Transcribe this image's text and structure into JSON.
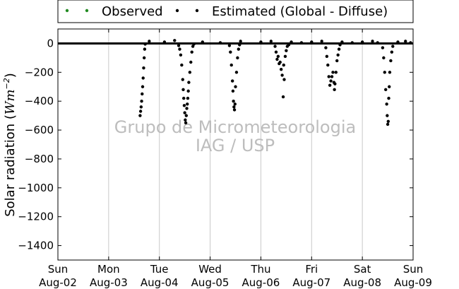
{
  "chart_data": {
    "type": "scatter",
    "ylabel": "Solar radiation",
    "ylabel_unit": "Wm",
    "ylabel_unit_exp": "−2",
    "ylim": [
      -1500,
      100
    ],
    "yticks": [
      0,
      -200,
      -400,
      -600,
      -800,
      -1000,
      -1200,
      -1400
    ],
    "ytick_labels": [
      "0",
      "−200",
      "−400",
      "−600",
      "−800",
      "−1000",
      "−1200",
      "−1400"
    ],
    "xlim": [
      0,
      7
    ],
    "x_unit": "days since Sun Aug-02 00:00",
    "xticks": [
      {
        "day": "Sun",
        "date": "Aug-02"
      },
      {
        "day": "Mon",
        "date": "Aug-03"
      },
      {
        "day": "Tue",
        "date": "Aug-04"
      },
      {
        "day": "Wed",
        "date": "Aug-05"
      },
      {
        "day": "Thu",
        "date": "Aug-06"
      },
      {
        "day": "Fri",
        "date": "Aug-07"
      },
      {
        "day": "Sat",
        "date": "Aug-08"
      },
      {
        "day": "Sun",
        "date": "Aug-09"
      }
    ],
    "grid": "vertical",
    "legend_position": "top",
    "watermark": [
      "Grupo de Micrometeorologia",
      "IAG / USP"
    ],
    "series": [
      {
        "name": "Observed",
        "color": "#228b22",
        "points": []
      },
      {
        "name": "Estimated (Global - Diffuse)",
        "color": "#000000",
        "baseline": 0,
        "points": [
          [
            1.62,
            -500
          ],
          [
            1.63,
            -470
          ],
          [
            1.64,
            -440
          ],
          [
            1.65,
            -400
          ],
          [
            1.66,
            -350
          ],
          [
            1.67,
            -300
          ],
          [
            1.68,
            -240
          ],
          [
            1.69,
            -170
          ],
          [
            1.7,
            -100
          ],
          [
            1.71,
            -40
          ],
          [
            1.72,
            -5
          ],
          [
            2.38,
            -15
          ],
          [
            2.4,
            -40
          ],
          [
            2.42,
            -80
          ],
          [
            2.44,
            -150
          ],
          [
            2.46,
            -250
          ],
          [
            2.47,
            -320
          ],
          [
            2.48,
            -380
          ],
          [
            2.49,
            -430
          ],
          [
            2.5,
            -480
          ],
          [
            2.51,
            -530
          ],
          [
            2.52,
            -550
          ],
          [
            2.53,
            -500
          ],
          [
            2.54,
            -450
          ],
          [
            2.55,
            -420
          ],
          [
            2.56,
            -380
          ],
          [
            2.57,
            -330
          ],
          [
            2.58,
            -270
          ],
          [
            2.6,
            -200
          ],
          [
            2.62,
            -130
          ],
          [
            2.64,
            -60
          ],
          [
            2.66,
            -20
          ],
          [
            2.68,
            -5
          ],
          [
            3.38,
            -15
          ],
          [
            3.4,
            -60
          ],
          [
            3.42,
            -150
          ],
          [
            3.44,
            -260
          ],
          [
            3.45,
            -330
          ],
          [
            3.46,
            -400
          ],
          [
            3.47,
            -440
          ],
          [
            3.48,
            -460
          ],
          [
            3.49,
            -420
          ],
          [
            3.5,
            -300
          ],
          [
            3.52,
            -200
          ],
          [
            3.54,
            -100
          ],
          [
            3.56,
            -40
          ],
          [
            3.58,
            -10
          ],
          [
            4.28,
            -20
          ],
          [
            4.3,
            -60
          ],
          [
            4.32,
            -110
          ],
          [
            4.34,
            -90
          ],
          [
            4.36,
            -140
          ],
          [
            4.38,
            -130
          ],
          [
            4.4,
            -180
          ],
          [
            4.42,
            -220
          ],
          [
            4.44,
            -370
          ],
          [
            4.45,
            -150
          ],
          [
            4.46,
            -250
          ],
          [
            4.48,
            -90
          ],
          [
            4.5,
            -50
          ],
          [
            4.52,
            -20
          ],
          [
            4.55,
            -10
          ],
          [
            5.28,
            -30
          ],
          [
            5.3,
            -90
          ],
          [
            5.32,
            -150
          ],
          [
            5.34,
            -230
          ],
          [
            5.36,
            -290
          ],
          [
            5.38,
            -260
          ],
          [
            5.4,
            -230
          ],
          [
            5.42,
            -200
          ],
          [
            5.44,
            -270
          ],
          [
            5.45,
            -320
          ],
          [
            5.46,
            -280
          ],
          [
            5.48,
            -200
          ],
          [
            5.5,
            -120
          ],
          [
            5.52,
            -80
          ],
          [
            5.54,
            -40
          ],
          [
            5.56,
            -10
          ],
          [
            6.4,
            -30
          ],
          [
            6.42,
            -100
          ],
          [
            6.44,
            -200
          ],
          [
            6.46,
            -320
          ],
          [
            6.48,
            -420
          ],
          [
            6.49,
            -500
          ],
          [
            6.5,
            -560
          ],
          [
            6.51,
            -540
          ],
          [
            6.52,
            -380
          ],
          [
            6.53,
            -300
          ],
          [
            6.54,
            -200
          ],
          [
            6.56,
            -120
          ],
          [
            6.58,
            -60
          ],
          [
            6.6,
            -20
          ],
          [
            1.8,
            15
          ],
          [
            2.1,
            10
          ],
          [
            2.3,
            20
          ],
          [
            2.85,
            10
          ],
          [
            3.2,
            5
          ],
          [
            3.6,
            15
          ],
          [
            4.0,
            10
          ],
          [
            4.2,
            15
          ],
          [
            4.6,
            10
          ],
          [
            4.8,
            5
          ],
          [
            5.0,
            10
          ],
          [
            5.2,
            15
          ],
          [
            5.6,
            10
          ],
          [
            5.8,
            5
          ],
          [
            6.0,
            10
          ],
          [
            6.2,
            15
          ],
          [
            6.3,
            5
          ],
          [
            6.7,
            10
          ],
          [
            6.85,
            15
          ],
          [
            6.95,
            5
          ]
        ]
      }
    ]
  }
}
